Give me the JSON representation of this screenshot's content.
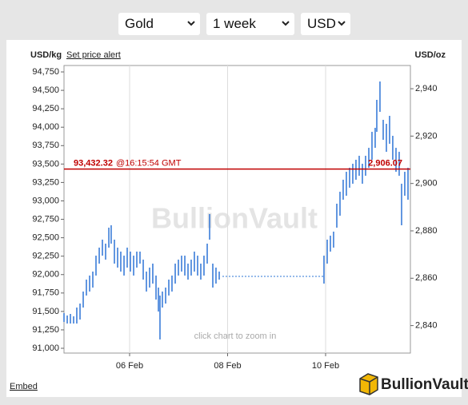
{
  "controls": {
    "metal": "Gold",
    "period": "1 week",
    "currency": "USD"
  },
  "links": {
    "price_alert": "Set price alert",
    "embed": "Embed"
  },
  "logo": "BullionVault",
  "chart_data": {
    "type": "hilo",
    "ylabel": "USD/kg",
    "y2label": "USD/oz",
    "watermark": "BullionVault",
    "hint": "click chart to zoom in",
    "color": "#2e74d6",
    "x": [
      4.661,
      4.727,
      4.792,
      4.857,
      4.922,
      4.988,
      5.053,
      5.118,
      5.184,
      5.249,
      5.314,
      5.38,
      5.445,
      5.51,
      5.576,
      5.624,
      5.69,
      5.755,
      5.82,
      5.886,
      5.951,
      6.016,
      6.082,
      6.147,
      6.212,
      6.278,
      6.343,
      6.408,
      6.473,
      6.539,
      6.588,
      6.62,
      6.669,
      6.735,
      6.8,
      6.865,
      6.931,
      6.996,
      7.061,
      7.127,
      7.192,
      7.257,
      7.322,
      7.388,
      7.453,
      7.518,
      7.584,
      7.633,
      7.698,
      7.763,
      7.829,
      9.967,
      10.033,
      10.098,
      10.163,
      10.229,
      10.294,
      10.359,
      10.424,
      10.49,
      10.555,
      10.62,
      10.686,
      10.751,
      10.816,
      10.882,
      10.947,
      11.012,
      11.045,
      11.11,
      11.176,
      11.241,
      11.306,
      11.371,
      11.437,
      11.502,
      11.551,
      11.616,
      11.682
    ],
    "high": [
      91477,
      91445,
      91466,
      91434,
      91553,
      91607,
      91770,
      91932,
      91987,
      92041,
      92257,
      92366,
      92474,
      92420,
      92637,
      92669,
      92474,
      92366,
      92312,
      92257,
      92366,
      92312,
      92257,
      92312,
      92312,
      92203,
      92041,
      92095,
      92149,
      91987,
      91824,
      91716,
      91770,
      91824,
      91932,
      91987,
      92149,
      92203,
      92257,
      92257,
      92149,
      92203,
      92312,
      92257,
      92149,
      92257,
      92420,
      92821,
      92149,
      92095,
      92041,
      92257,
      92474,
      92528,
      92583,
      92962,
      93124,
      93287,
      93395,
      93450,
      93504,
      93558,
      93612,
      93504,
      93612,
      93720,
      93937,
      93991,
      94371,
      94620,
      94100,
      94046,
      94154,
      93883,
      93720,
      93666,
      93233,
      93395,
      93450
    ],
    "low": [
      91358,
      91336,
      91336,
      91336,
      91336,
      91390,
      91553,
      91716,
      91770,
      91824,
      91987,
      92149,
      92257,
      92203,
      92366,
      92420,
      92149,
      92095,
      92041,
      91987,
      92095,
      92041,
      91987,
      92095,
      92149,
      91932,
      91770,
      91824,
      91878,
      91661,
      91499,
      91120,
      91553,
      91607,
      91716,
      91770,
      91878,
      91987,
      92041,
      91987,
      91932,
      91987,
      92041,
      91987,
      91932,
      91987,
      92149,
      92474,
      91824,
      91878,
      91932,
      91878,
      92149,
      92312,
      92366,
      92637,
      92799,
      93016,
      93070,
      93179,
      93233,
      93287,
      93341,
      93233,
      93341,
      93450,
      93558,
      93720,
      93937,
      94208,
      93829,
      93666,
      93775,
      93558,
      93395,
      93341,
      92669,
      93070,
      93016
    ],
    "closed_market": {
      "x": [
        7.894,
        9.967
      ],
      "values": [
        91976,
        91976
      ]
    },
    "current_price": {
      "value": 93432.32,
      "value_label": "93,432.32",
      "time": "@16:15:54 GMT",
      "value_y2": 2906.07,
      "value_y2_label": "2,906.07",
      "color": "#c00000"
    },
    "xlim": [
      4.661,
      11.731
    ],
    "xticks": [
      {
        "value": 6,
        "label": "06 Feb"
      },
      {
        "value": 8,
        "label": "08 Feb"
      },
      {
        "value": 10,
        "label": "10 Feb"
      }
    ],
    "ylim": [
      90935,
      94837
    ],
    "yticks": [
      {
        "value": 91000,
        "label": "91,000"
      },
      {
        "value": 91250,
        "label": "91,250"
      },
      {
        "value": 91500,
        "label": "91,500"
      },
      {
        "value": 91750,
        "label": "91,750"
      },
      {
        "value": 92000,
        "label": "92,000"
      },
      {
        "value": 92250,
        "label": "92,250"
      },
      {
        "value": 92500,
        "label": "92,500"
      },
      {
        "value": 92750,
        "label": "92,750"
      },
      {
        "value": 93000,
        "label": "93,000"
      },
      {
        "value": 93250,
        "label": "93,250"
      },
      {
        "value": 93500,
        "label": "93,500"
      },
      {
        "value": 93750,
        "label": "93,750"
      },
      {
        "value": 94000,
        "label": "94,000"
      },
      {
        "value": 94250,
        "label": "94,250"
      },
      {
        "value": 94500,
        "label": "94,500"
      },
      {
        "value": 94750,
        "label": "94,750"
      }
    ],
    "y2lim": [
      2828.4,
      2949.8
    ],
    "y2ticks": [
      {
        "value": 2840,
        "label": "2,840"
      },
      {
        "value": 2860,
        "label": "2,860"
      },
      {
        "value": 2880,
        "label": "2,880"
      },
      {
        "value": 2900,
        "label": "2,900"
      },
      {
        "value": 2920,
        "label": "2,920"
      },
      {
        "value": 2940,
        "label": "2,940"
      }
    ],
    "grid": "x"
  }
}
